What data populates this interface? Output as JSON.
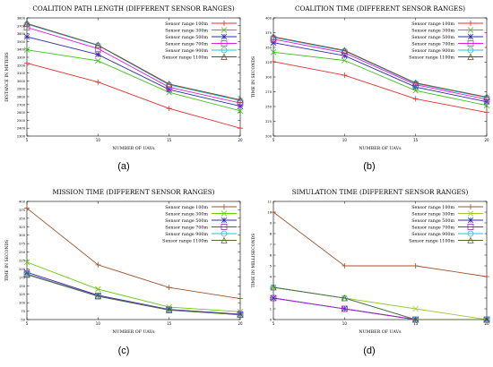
{
  "captions": [
    "(a)",
    "(b)",
    "(c)",
    "(d)"
  ],
  "chart_data": [
    {
      "type": "line",
      "title": "COALITION PATH LENGTH (DIFFERENT SENSOR RANGES)",
      "xlabel": "NUMBER OF UAVs",
      "ylabel": "DISTANCE IN METERS",
      "x": [
        5,
        10,
        15,
        20
      ],
      "xlim": [
        5,
        20
      ],
      "ylim": [
        2300,
        3800
      ],
      "yticks": [
        2300,
        2400,
        2500,
        2600,
        2700,
        2800,
        2900,
        3000,
        3100,
        3200,
        3300,
        3400,
        3500,
        3600,
        3700,
        3800
      ],
      "xticks": [
        5,
        10,
        15,
        20
      ],
      "legend_position": "top-right",
      "series": [
        {
          "name": "Sensor range 100m",
          "color": "#e03030",
          "marker": "plus",
          "values": [
            3225,
            2985,
            2650,
            2400
          ]
        },
        {
          "name": "Sensor range 300m",
          "color": "#40c020",
          "marker": "cross",
          "values": [
            3395,
            3255,
            2855,
            2620
          ]
        },
        {
          "name": "Sensor range 500m",
          "color": "#2c2ca8",
          "marker": "star",
          "values": [
            3560,
            3335,
            2890,
            2680
          ]
        },
        {
          "name": "Sensor range 700m",
          "color": "#e020e0",
          "marker": "square",
          "values": [
            3680,
            3410,
            2920,
            2720
          ]
        },
        {
          "name": "Sensor range 900m",
          "color": "#20c0e0",
          "marker": "circle",
          "values": [
            3720,
            3450,
            2950,
            2750
          ]
        },
        {
          "name": "Sensor range 1100m",
          "color": "#804020",
          "marker": "triangle",
          "values": [
            3730,
            3455,
            2960,
            2760
          ]
        }
      ]
    },
    {
      "type": "line",
      "title": "COALITION TIME (DIFFERENT SENSOR RANGES)",
      "xlabel": "NUMBER OF UAVs",
      "ylabel": "TIME IN SECONDS",
      "x": [
        5,
        10,
        15,
        20
      ],
      "xlim": [
        5,
        20
      ],
      "ylim": [
        200,
        400
      ],
      "yticks": [
        200,
        225,
        250,
        275,
        300,
        325,
        350,
        375,
        400
      ],
      "xticks": [
        5,
        10,
        15,
        20
      ],
      "legend_position": "top-right",
      "series": [
        {
          "name": "Sensor range 100m",
          "color": "#e03030",
          "marker": "plus",
          "values": [
            326,
            303,
            263,
            240
          ]
        },
        {
          "name": "Sensor range 300m",
          "color": "#40c020",
          "marker": "cross",
          "values": [
            342,
            328,
            277,
            252
          ]
        },
        {
          "name": "Sensor range 500m",
          "color": "#2c2ca8",
          "marker": "star",
          "values": [
            358,
            336,
            283,
            258
          ]
        },
        {
          "name": "Sensor range 700m",
          "color": "#e020e0",
          "marker": "square",
          "values": [
            364,
            341,
            287,
            262
          ]
        },
        {
          "name": "Sensor range 900m",
          "color": "#20c0e0",
          "marker": "circle",
          "values": [
            367,
            344,
            289,
            265
          ]
        },
        {
          "name": "Sensor range 1100m",
          "color": "#804020",
          "marker": "triangle",
          "values": [
            368,
            345,
            290,
            266
          ]
        }
      ]
    },
    {
      "type": "line",
      "title": "MISSION TIME (DIFFERENT SENSOR RANGES)",
      "xlabel": "NUMBER OF UAVs",
      "ylabel": "TIME IN SECONDS",
      "x": [
        5,
        10,
        15,
        20
      ],
      "xlim": [
        5,
        20
      ],
      "ylim": [
        50,
        400
      ],
      "yticks": [
        50,
        75,
        100,
        125,
        150,
        175,
        200,
        225,
        250,
        275,
        300,
        325,
        350,
        375,
        400
      ],
      "xticks": [
        5,
        10,
        15,
        20
      ],
      "legend_position": "top-right",
      "series": [
        {
          "name": "Sensor range 100m",
          "color": "#a0522d",
          "marker": "plus",
          "values": [
            380,
            212,
            145,
            112
          ]
        },
        {
          "name": "Sensor range 300m",
          "color": "#66cc00",
          "marker": "cross",
          "values": [
            220,
            140,
            87,
            73
          ]
        },
        {
          "name": "Sensor range 500m",
          "color": "#2c2ca8",
          "marker": "star",
          "values": [
            190,
            122,
            80,
            66
          ]
        },
        {
          "name": "Sensor range 700m",
          "color": "#a020c0",
          "marker": "square",
          "values": [
            185,
            120,
            79,
            65
          ]
        },
        {
          "name": "Sensor range 900m",
          "color": "#20c0e0",
          "marker": "circle",
          "values": [
            184,
            119,
            78,
            64
          ]
        },
        {
          "name": "Sensor range 1100m",
          "color": "#556b2f",
          "marker": "triangle",
          "values": [
            183,
            119,
            78,
            64
          ]
        }
      ]
    },
    {
      "type": "line",
      "title": "SIMULATION TIME (DIFFERENT SENSOR RANGES)",
      "xlabel": "NUMBER OF UAVs",
      "ylabel": "TIME IN MILLISECONDS",
      "x": [
        5,
        10,
        15,
        20
      ],
      "xlim": [
        5,
        20
      ],
      "ylim": [
        0,
        11
      ],
      "yticks": [
        0,
        1,
        2,
        3,
        4,
        5,
        6,
        7,
        8,
        9,
        10,
        11
      ],
      "xticks": [
        5,
        10,
        15,
        20
      ],
      "legend_position": "top-right",
      "series": [
        {
          "name": "Sensor range 100m",
          "color": "#a0522d",
          "marker": "plus",
          "values": [
            10,
            5,
            5,
            4
          ]
        },
        {
          "name": "Sensor range 300m",
          "color": "#99cc33",
          "marker": "cross",
          "values": [
            3,
            2,
            1,
            0
          ]
        },
        {
          "name": "Sensor range 500m",
          "color": "#2c2ca8",
          "marker": "star",
          "values": [
            2,
            1,
            0,
            0
          ]
        },
        {
          "name": "Sensor range 700m",
          "color": "#a020c0",
          "marker": "square",
          "values": [
            2,
            1,
            0,
            0
          ]
        },
        {
          "name": "Sensor range 900m",
          "color": "#20c0e0",
          "marker": "circle",
          "values": [
            3,
            2,
            0,
            0
          ]
        },
        {
          "name": "Sensor range 1100m",
          "color": "#556b2f",
          "marker": "triangle",
          "values": [
            3,
            2,
            0,
            0
          ]
        }
      ]
    }
  ]
}
